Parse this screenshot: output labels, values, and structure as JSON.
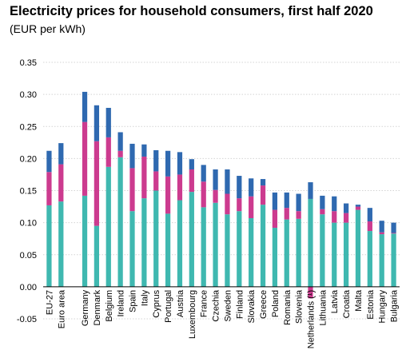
{
  "chart_data": {
    "type": "bar",
    "stacked": true,
    "title": "Electricity prices for household consumers, first half 2020",
    "subtitle": "(EUR per kWh)",
    "ylim": [
      -0.05,
      0.35
    ],
    "yticks": [
      "0.35",
      "0.30",
      "0.25",
      "0.20",
      "0.15",
      "0.10",
      "0.05",
      "0.00",
      "-0.05"
    ],
    "grid": true,
    "legend": "none",
    "categories": [
      "EU-27",
      "Euro area",
      "",
      "Germany",
      "Denmark",
      "Belgium",
      "Ireland",
      "Spain",
      "Italy",
      "Cyprus",
      "Portugal",
      "Austria",
      "Luxembourg",
      "France",
      "Czechia",
      "Sweden",
      "Finland",
      "Slovakia",
      "Greece",
      "Poland",
      "Romania",
      "Slovenia",
      "Netherlands (¹)",
      "Lithuania",
      "Latvia",
      "Croatia",
      "Malta",
      "Estonia",
      "Hungary",
      "Bulgaria"
    ],
    "series": [
      {
        "color": "#3fb8b0",
        "values": [
          0.127,
          0.133,
          null,
          0.142,
          0.095,
          0.187,
          0.202,
          0.118,
          0.138,
          0.15,
          0.114,
          0.135,
          0.148,
          0.124,
          0.131,
          0.113,
          0.118,
          0.107,
          0.128,
          0.092,
          0.105,
          0.106,
          0.137,
          0.113,
          0.1,
          0.1,
          0.12,
          0.087,
          0.082,
          0.083
        ]
      },
      {
        "color": "#cc3b8f",
        "values": [
          0.052,
          0.058,
          null,
          0.115,
          0.132,
          0.046,
          0.01,
          0.067,
          0.065,
          0.03,
          0.058,
          0.04,
          0.035,
          0.04,
          0.02,
          0.032,
          0.02,
          0.034,
          0.03,
          0.028,
          0.018,
          0.012,
          -0.018,
          0.008,
          0.018,
          0.015,
          0.005,
          0.015,
          0.003,
          0.001
        ]
      },
      {
        "color": "#2f69b0",
        "values": [
          0.033,
          0.033,
          null,
          0.047,
          0.056,
          0.046,
          0.029,
          0.038,
          0.019,
          0.033,
          0.04,
          0.035,
          0.016,
          0.026,
          0.032,
          0.038,
          0.035,
          0.028,
          0.01,
          0.027,
          0.024,
          0.027,
          0.026,
          0.021,
          0.023,
          0.015,
          0.003,
          0.021,
          0.018,
          0.016
        ]
      }
    ]
  }
}
